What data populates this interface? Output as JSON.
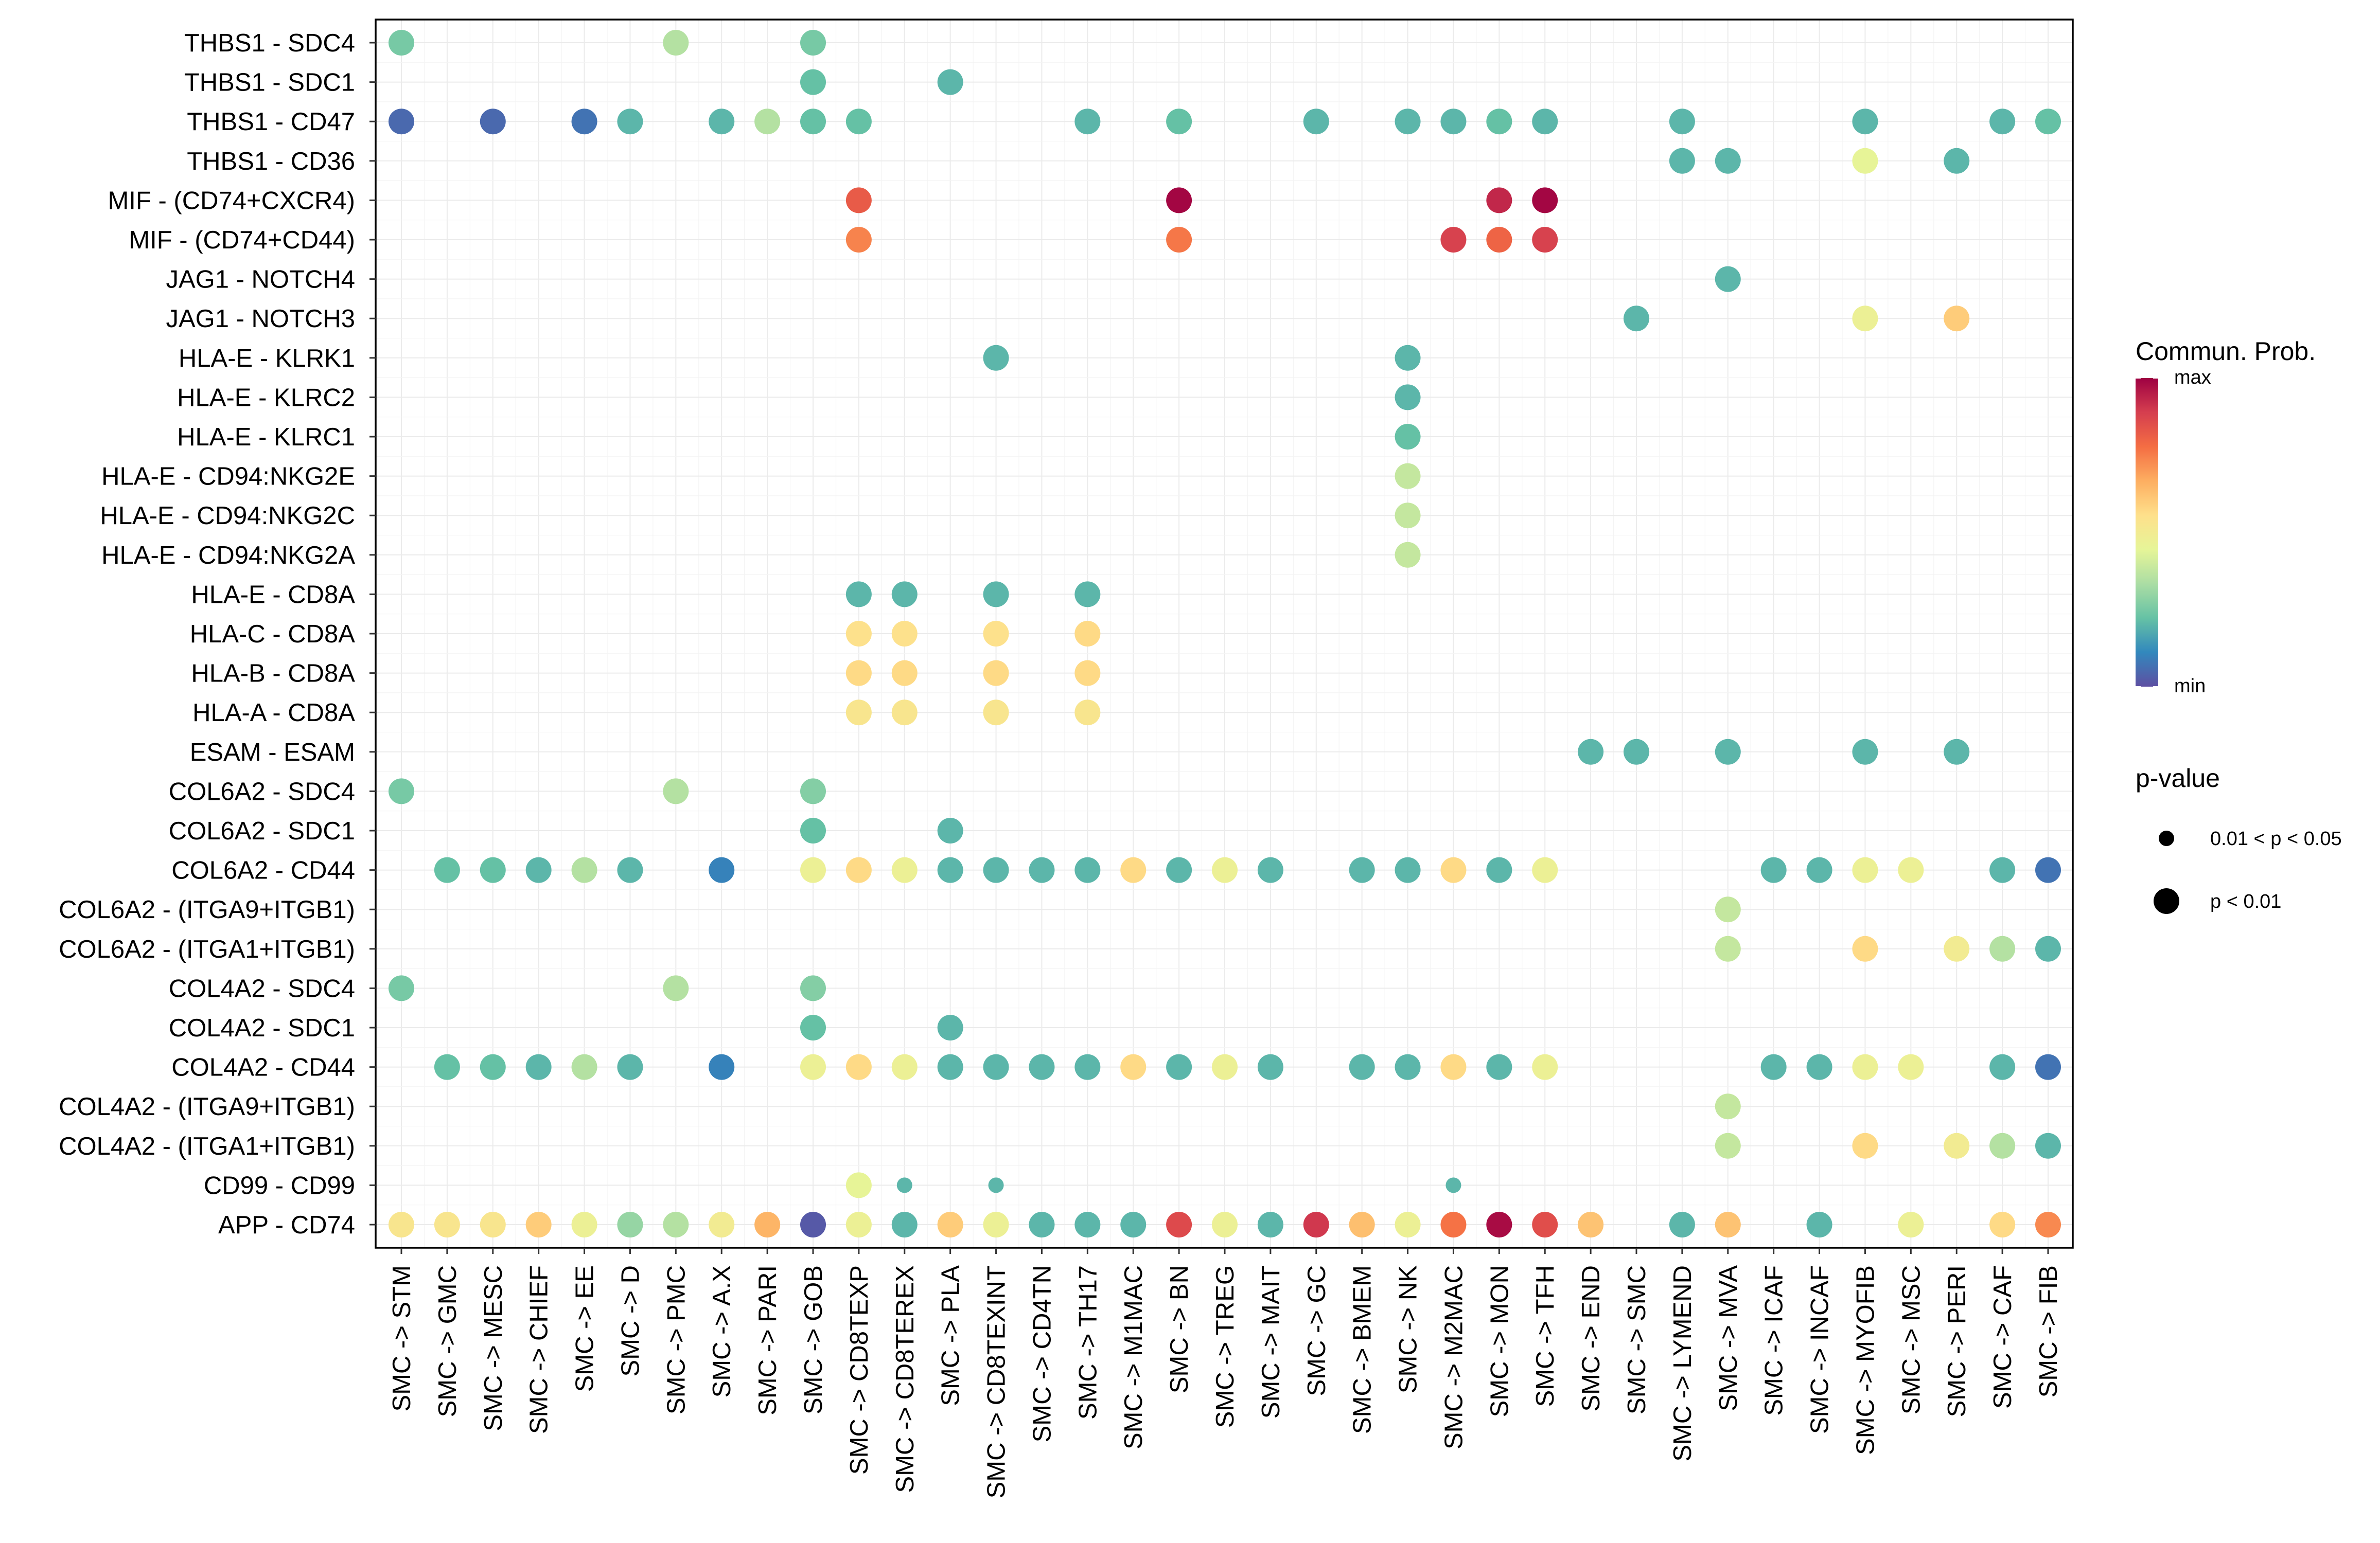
{
  "chart_data": {
    "type": "dot",
    "x_categories": [
      "SMC -> STM",
      "SMC -> GMC",
      "SMC -> MESC",
      "SMC -> CHIEF",
      "SMC -> EE",
      "SMC -> D",
      "SMC -> PMC",
      "SMC -> A.X",
      "SMC -> PARI",
      "SMC -> GOB",
      "SMC -> CD8TEXP",
      "SMC -> CD8TEREX",
      "SMC -> PLA",
      "SMC -> CD8TEXINT",
      "SMC -> CD4TN",
      "SMC -> TH17",
      "SMC -> M1MAC",
      "SMC -> BN",
      "SMC -> TREG",
      "SMC -> MAIT",
      "SMC -> GC",
      "SMC -> BMEM",
      "SMC -> NK",
      "SMC -> M2MAC",
      "SMC -> MON",
      "SMC -> TFH",
      "SMC -> END",
      "SMC -> SMC",
      "SMC -> LYMEND",
      "SMC -> MVA",
      "SMC -> ICAF",
      "SMC -> INCAF",
      "SMC -> MYOFIB",
      "SMC -> MSC",
      "SMC -> PERI",
      "SMC -> CAF",
      "SMC -> FIB"
    ],
    "y_categories": [
      "THBS1 - SDC4",
      "THBS1 - SDC1",
      "THBS1 - CD47",
      "THBS1 - CD36",
      "MIF - (CD74+CXCR4)",
      "MIF - (CD74+CD44)",
      "JAG1 - NOTCH4",
      "JAG1 - NOTCH3",
      "HLA-E - KLRK1",
      "HLA-E - KLRC2",
      "HLA-E - KLRC1",
      "HLA-E - CD94:NKG2E",
      "HLA-E - CD94:NKG2C",
      "HLA-E - CD94:NKG2A",
      "HLA-E - CD8A",
      "HLA-C - CD8A",
      "HLA-B - CD8A",
      "HLA-A - CD8A",
      "ESAM - ESAM",
      "COL6A2 - SDC4",
      "COL6A2 - SDC1",
      "COL6A2 - CD44",
      "COL6A2 - (ITGA9+ITGB1)",
      "COL6A2 - (ITGA1+ITGB1)",
      "COL4A2 - SDC4",
      "COL4A2 - SDC1",
      "COL4A2 - CD44",
      "COL4A2 - (ITGA9+ITGB1)",
      "COL4A2 - (ITGA1+ITGB1)",
      "CD99 - CD99",
      "APP - CD74"
    ],
    "point_fields": [
      "x_index",
      "y_index",
      "prob_scaled",
      "pval_class"
    ],
    "points": [
      [
        0,
        0,
        0.25,
        1
      ],
      [
        6,
        0,
        0.35,
        1
      ],
      [
        9,
        0,
        0.25,
        1
      ],
      [
        9,
        1,
        0.22,
        1
      ],
      [
        12,
        1,
        0.2,
        1
      ],
      [
        0,
        2,
        0.05,
        1
      ],
      [
        2,
        2,
        0.05,
        1
      ],
      [
        4,
        2,
        0.07,
        1
      ],
      [
        5,
        2,
        0.2,
        1
      ],
      [
        7,
        2,
        0.2,
        1
      ],
      [
        8,
        2,
        0.35,
        1
      ],
      [
        9,
        2,
        0.22,
        1
      ],
      [
        10,
        2,
        0.22,
        1
      ],
      [
        15,
        2,
        0.2,
        1
      ],
      [
        17,
        2,
        0.22,
        1
      ],
      [
        20,
        2,
        0.2,
        1
      ],
      [
        22,
        2,
        0.2,
        1
      ],
      [
        23,
        2,
        0.2,
        1
      ],
      [
        24,
        2,
        0.22,
        1
      ],
      [
        25,
        2,
        0.2,
        1
      ],
      [
        28,
        2,
        0.2,
        1
      ],
      [
        32,
        2,
        0.2,
        1
      ],
      [
        35,
        2,
        0.2,
        1
      ],
      [
        36,
        2,
        0.22,
        1
      ],
      [
        28,
        3,
        0.2,
        1
      ],
      [
        29,
        3,
        0.2,
        1
      ],
      [
        32,
        3,
        0.45,
        1
      ],
      [
        34,
        3,
        0.2,
        1
      ],
      [
        10,
        4,
        0.82,
        1
      ],
      [
        17,
        4,
        0.99,
        1
      ],
      [
        24,
        4,
        0.93,
        1
      ],
      [
        25,
        4,
        0.99,
        1
      ],
      [
        10,
        5,
        0.74,
        1
      ],
      [
        17,
        5,
        0.76,
        1
      ],
      [
        23,
        5,
        0.88,
        1
      ],
      [
        24,
        5,
        0.8,
        1
      ],
      [
        25,
        5,
        0.88,
        1
      ],
      [
        29,
        6,
        0.2,
        1
      ],
      [
        27,
        7,
        0.2,
        1
      ],
      [
        32,
        7,
        0.47,
        1
      ],
      [
        34,
        7,
        0.6,
        1
      ],
      [
        13,
        8,
        0.2,
        1
      ],
      [
        22,
        8,
        0.2,
        1
      ],
      [
        22,
        9,
        0.2,
        1
      ],
      [
        22,
        10,
        0.22,
        1
      ],
      [
        22,
        11,
        0.38,
        1
      ],
      [
        22,
        12,
        0.38,
        1
      ],
      [
        22,
        13,
        0.38,
        1
      ],
      [
        10,
        14,
        0.2,
        1
      ],
      [
        11,
        14,
        0.2,
        1
      ],
      [
        13,
        14,
        0.2,
        1
      ],
      [
        15,
        14,
        0.2,
        1
      ],
      [
        10,
        15,
        0.55,
        1
      ],
      [
        11,
        15,
        0.55,
        1
      ],
      [
        13,
        15,
        0.55,
        1
      ],
      [
        15,
        15,
        0.57,
        1
      ],
      [
        10,
        16,
        0.57,
        1
      ],
      [
        11,
        16,
        0.57,
        1
      ],
      [
        13,
        16,
        0.57,
        1
      ],
      [
        15,
        16,
        0.57,
        1
      ],
      [
        10,
        17,
        0.53,
        1
      ],
      [
        11,
        17,
        0.53,
        1
      ],
      [
        13,
        17,
        0.53,
        1
      ],
      [
        15,
        17,
        0.53,
        1
      ],
      [
        26,
        18,
        0.2,
        1
      ],
      [
        27,
        18,
        0.2,
        1
      ],
      [
        29,
        18,
        0.2,
        1
      ],
      [
        32,
        18,
        0.2,
        1
      ],
      [
        34,
        18,
        0.2,
        1
      ],
      [
        0,
        19,
        0.25,
        1
      ],
      [
        6,
        19,
        0.35,
        1
      ],
      [
        9,
        19,
        0.27,
        1
      ],
      [
        9,
        20,
        0.22,
        1
      ],
      [
        12,
        20,
        0.2,
        1
      ],
      [
        1,
        21,
        0.22,
        1
      ],
      [
        2,
        21,
        0.22,
        1
      ],
      [
        3,
        21,
        0.2,
        1
      ],
      [
        4,
        21,
        0.35,
        1
      ],
      [
        5,
        21,
        0.2,
        1
      ],
      [
        7,
        21,
        0.1,
        1
      ],
      [
        9,
        21,
        0.47,
        1
      ],
      [
        10,
        21,
        0.57,
        1
      ],
      [
        11,
        21,
        0.47,
        1
      ],
      [
        12,
        21,
        0.2,
        1
      ],
      [
        13,
        21,
        0.2,
        1
      ],
      [
        14,
        21,
        0.2,
        1
      ],
      [
        15,
        21,
        0.2,
        1
      ],
      [
        16,
        21,
        0.57,
        1
      ],
      [
        17,
        21,
        0.2,
        1
      ],
      [
        18,
        21,
        0.47,
        1
      ],
      [
        19,
        21,
        0.2,
        1
      ],
      [
        21,
        21,
        0.2,
        1
      ],
      [
        22,
        21,
        0.2,
        1
      ],
      [
        23,
        21,
        0.57,
        1
      ],
      [
        24,
        21,
        0.2,
        1
      ],
      [
        25,
        21,
        0.47,
        1
      ],
      [
        30,
        21,
        0.2,
        1
      ],
      [
        31,
        21,
        0.2,
        1
      ],
      [
        32,
        21,
        0.47,
        1
      ],
      [
        33,
        21,
        0.47,
        1
      ],
      [
        35,
        21,
        0.2,
        1
      ],
      [
        36,
        21,
        0.07,
        1
      ],
      [
        29,
        22,
        0.38,
        1
      ],
      [
        29,
        23,
        0.38,
        1
      ],
      [
        32,
        23,
        0.57,
        1
      ],
      [
        34,
        23,
        0.5,
        1
      ],
      [
        35,
        23,
        0.35,
        1
      ],
      [
        36,
        23,
        0.2,
        1
      ],
      [
        0,
        24,
        0.25,
        1
      ],
      [
        6,
        24,
        0.35,
        1
      ],
      [
        9,
        24,
        0.27,
        1
      ],
      [
        9,
        25,
        0.22,
        1
      ],
      [
        12,
        25,
        0.2,
        1
      ],
      [
        1,
        26,
        0.22,
        1
      ],
      [
        2,
        26,
        0.22,
        1
      ],
      [
        3,
        26,
        0.2,
        1
      ],
      [
        4,
        26,
        0.35,
        1
      ],
      [
        5,
        26,
        0.2,
        1
      ],
      [
        7,
        26,
        0.1,
        1
      ],
      [
        9,
        26,
        0.47,
        1
      ],
      [
        10,
        26,
        0.57,
        1
      ],
      [
        11,
        26,
        0.47,
        1
      ],
      [
        12,
        26,
        0.2,
        1
      ],
      [
        13,
        26,
        0.2,
        1
      ],
      [
        14,
        26,
        0.2,
        1
      ],
      [
        15,
        26,
        0.2,
        1
      ],
      [
        16,
        26,
        0.57,
        1
      ],
      [
        17,
        26,
        0.2,
        1
      ],
      [
        18,
        26,
        0.47,
        1
      ],
      [
        19,
        26,
        0.2,
        1
      ],
      [
        21,
        26,
        0.2,
        1
      ],
      [
        22,
        26,
        0.2,
        1
      ],
      [
        23,
        26,
        0.57,
        1
      ],
      [
        24,
        26,
        0.2,
        1
      ],
      [
        25,
        26,
        0.47,
        1
      ],
      [
        30,
        26,
        0.2,
        1
      ],
      [
        31,
        26,
        0.2,
        1
      ],
      [
        32,
        26,
        0.47,
        1
      ],
      [
        33,
        26,
        0.47,
        1
      ],
      [
        35,
        26,
        0.2,
        1
      ],
      [
        36,
        26,
        0.07,
        1
      ],
      [
        29,
        27,
        0.38,
        1
      ],
      [
        29,
        28,
        0.38,
        1
      ],
      [
        32,
        28,
        0.57,
        1
      ],
      [
        34,
        28,
        0.5,
        1
      ],
      [
        35,
        28,
        0.35,
        1
      ],
      [
        36,
        28,
        0.2,
        1
      ],
      [
        10,
        29,
        0.45,
        1
      ],
      [
        11,
        29,
        0.2,
        0
      ],
      [
        13,
        29,
        0.2,
        0
      ],
      [
        23,
        29,
        0.2,
        0
      ],
      [
        0,
        30,
        0.53,
        1
      ],
      [
        1,
        30,
        0.53,
        1
      ],
      [
        2,
        30,
        0.53,
        1
      ],
      [
        3,
        30,
        0.6,
        1
      ],
      [
        4,
        30,
        0.47,
        1
      ],
      [
        5,
        30,
        0.3,
        1
      ],
      [
        6,
        30,
        0.35,
        1
      ],
      [
        7,
        30,
        0.5,
        1
      ],
      [
        8,
        30,
        0.65,
        1
      ],
      [
        9,
        30,
        0.02,
        1
      ],
      [
        10,
        30,
        0.47,
        1
      ],
      [
        11,
        30,
        0.2,
        1
      ],
      [
        12,
        30,
        0.6,
        1
      ],
      [
        13,
        30,
        0.47,
        1
      ],
      [
        14,
        30,
        0.2,
        1
      ],
      [
        15,
        30,
        0.2,
        1
      ],
      [
        16,
        30,
        0.2,
        1
      ],
      [
        17,
        30,
        0.86,
        1
      ],
      [
        18,
        30,
        0.47,
        1
      ],
      [
        19,
        30,
        0.2,
        1
      ],
      [
        20,
        30,
        0.9,
        1
      ],
      [
        21,
        30,
        0.63,
        1
      ],
      [
        22,
        30,
        0.47,
        1
      ],
      [
        23,
        30,
        0.77,
        1
      ],
      [
        24,
        30,
        0.98,
        1
      ],
      [
        25,
        30,
        0.85,
        1
      ],
      [
        26,
        30,
        0.62,
        1
      ],
      [
        28,
        30,
        0.2,
        1
      ],
      [
        29,
        30,
        0.62,
        1
      ],
      [
        31,
        30,
        0.2,
        1
      ],
      [
        33,
        30,
        0.47,
        1
      ],
      [
        35,
        30,
        0.57,
        1
      ],
      [
        36,
        30,
        0.73,
        1
      ]
    ],
    "legend": {
      "color_title": "Commun. Prob.",
      "color_max_label": "max",
      "color_min_label": "min",
      "size_title": "p-value",
      "size_labels": [
        "0.01 < p < 0.05",
        "p < 0.01"
      ],
      "placement": "right"
    },
    "colorscale": [
      "#5E4FA2",
      "#3288BD",
      "#66C2A5",
      "#ABDDA4",
      "#E6F598",
      "#FEE08B",
      "#FDAE61",
      "#F46D43",
      "#D53E4F",
      "#9E0142"
    ],
    "grid": true
  }
}
